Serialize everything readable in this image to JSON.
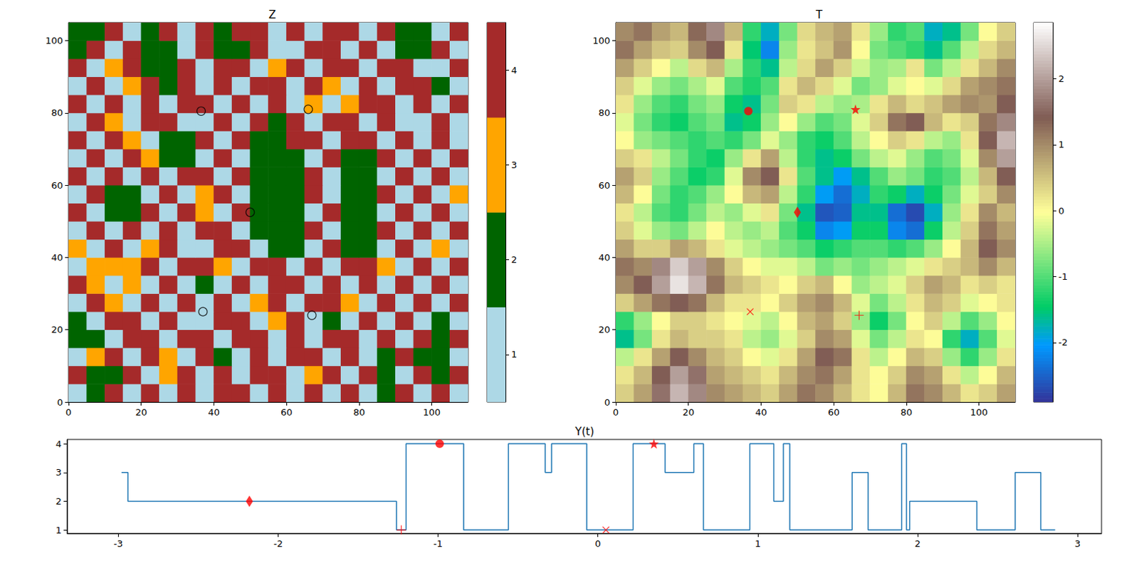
{
  "chart_data": [
    {
      "type": "heatmap",
      "title": "Z",
      "xlim": [
        0,
        110
      ],
      "ylim": [
        0,
        105
      ],
      "xticks": [
        0,
        20,
        40,
        60,
        80,
        100
      ],
      "yticks": [
        0,
        20,
        40,
        60,
        80,
        100
      ],
      "grid": false,
      "cells": [
        [
          1,
          2,
          4,
          1,
          4,
          1,
          4,
          1,
          4,
          4,
          1,
          4,
          1,
          4,
          1,
          4,
          1,
          2,
          4,
          1,
          4,
          1
        ],
        [
          4,
          2,
          2,
          4,
          1,
          3,
          4,
          1,
          4,
          1,
          4,
          4,
          1,
          3,
          4,
          1,
          4,
          2,
          1,
          4,
          2,
          4
        ],
        [
          1,
          3,
          4,
          1,
          4,
          3,
          1,
          4,
          2,
          1,
          4,
          1,
          4,
          4,
          1,
          4,
          1,
          2,
          4,
          2,
          2,
          1
        ],
        [
          2,
          2,
          1,
          4,
          4,
          1,
          4,
          4,
          1,
          4,
          4,
          1,
          4,
          1,
          4,
          4,
          1,
          4,
          1,
          4,
          2,
          4
        ],
        [
          2,
          1,
          4,
          4,
          1,
          4,
          1,
          1,
          4,
          4,
          1,
          3,
          4,
          1,
          2,
          1,
          4,
          1,
          4,
          1,
          2,
          1
        ],
        [
          1,
          4,
          3,
          1,
          4,
          1,
          4,
          1,
          4,
          1,
          3,
          4,
          1,
          4,
          4,
          3,
          1,
          4,
          1,
          4,
          1,
          4
        ],
        [
          4,
          3,
          1,
          3,
          1,
          4,
          1,
          2,
          1,
          4,
          1,
          4,
          4,
          1,
          4,
          1,
          4,
          1,
          4,
          1,
          4,
          1
        ],
        [
          1,
          3,
          3,
          3,
          4,
          1,
          4,
          4,
          3,
          1,
          4,
          4,
          1,
          4,
          1,
          4,
          4,
          3,
          1,
          4,
          1,
          4
        ],
        [
          3,
          1,
          4,
          1,
          3,
          4,
          1,
          1,
          4,
          4,
          1,
          2,
          2,
          1,
          4,
          2,
          2,
          1,
          4,
          1,
          3,
          1
        ],
        [
          1,
          4,
          1,
          4,
          1,
          4,
          1,
          4,
          4,
          1,
          2,
          2,
          2,
          4,
          1,
          2,
          2,
          4,
          1,
          4,
          1,
          4
        ],
        [
          4,
          1,
          2,
          2,
          4,
          1,
          4,
          3,
          1,
          4,
          2,
          2,
          2,
          1,
          4,
          2,
          2,
          1,
          4,
          1,
          4,
          1
        ],
        [
          1,
          4,
          2,
          2,
          1,
          4,
          1,
          3,
          4,
          1,
          2,
          2,
          2,
          4,
          1,
          2,
          2,
          4,
          1,
          4,
          1,
          3
        ],
        [
          4,
          1,
          4,
          1,
          4,
          1,
          4,
          4,
          1,
          4,
          2,
          2,
          2,
          4,
          1,
          2,
          2,
          1,
          4,
          1,
          4,
          1
        ],
        [
          1,
          4,
          1,
          4,
          3,
          2,
          2,
          1,
          4,
          1,
          2,
          2,
          2,
          1,
          4,
          2,
          2,
          4,
          1,
          4,
          1,
          4
        ],
        [
          4,
          1,
          4,
          3,
          1,
          2,
          2,
          4,
          1,
          4,
          2,
          2,
          4,
          4,
          1,
          4,
          4,
          1,
          4,
          1,
          4,
          1
        ],
        [
          1,
          4,
          3,
          1,
          4,
          4,
          1,
          1,
          4,
          1,
          4,
          2,
          4,
          1,
          4,
          4,
          1,
          4,
          1,
          1,
          4,
          1
        ],
        [
          4,
          1,
          4,
          1,
          4,
          1,
          4,
          4,
          1,
          4,
          1,
          4,
          1,
          3,
          1,
          3,
          4,
          4,
          1,
          4,
          1,
          4
        ],
        [
          1,
          4,
          1,
          3,
          4,
          2,
          4,
          1,
          4,
          1,
          4,
          4,
          1,
          4,
          3,
          1,
          4,
          1,
          4,
          4,
          2,
          1
        ],
        [
          4,
          1,
          3,
          4,
          2,
          2,
          4,
          1,
          4,
          4,
          1,
          3,
          4,
          1,
          4,
          4,
          1,
          4,
          4,
          1,
          1,
          4
        ],
        [
          2,
          4,
          1,
          4,
          2,
          2,
          1,
          4,
          2,
          2,
          4,
          1,
          1,
          4,
          4,
          1,
          4,
          1,
          2,
          2,
          4,
          1
        ],
        [
          2,
          2,
          4,
          1,
          2,
          4,
          1,
          4,
          2,
          4,
          4,
          1,
          4,
          1,
          4,
          4,
          1,
          4,
          2,
          2,
          1,
          4
        ]
      ],
      "color_range": [
        0.5,
        4.5
      ],
      "color_ticks": [
        1,
        2,
        3,
        4
      ],
      "colors": [
        "#add8e6",
        "#006400",
        "#ffa500",
        "#a52a2a"
      ],
      "points": {
        "x": [
          36.5,
          66,
          50,
          37,
          67
        ],
        "y": [
          80.5,
          81,
          52.5,
          25,
          24
        ],
        "marker": "circle",
        "color": "#000000"
      }
    },
    {
      "type": "heatmap",
      "title": "T",
      "xlim": [
        0,
        110
      ],
      "ylim": [
        0,
        105
      ],
      "xticks": [
        0,
        20,
        40,
        60,
        80,
        100
      ],
      "yticks": [
        0,
        20,
        40,
        60,
        80,
        100
      ],
      "grid": false,
      "cells": [
        [
          0.4,
          0.8,
          1.6,
          2.2,
          1.8,
          1.0,
          0.8,
          0.6,
          0.4,
          0.8,
          1.2,
          1.0,
          0.6,
          0.2,
          0.0,
          0.6,
          1.2,
          1.0,
          0.6,
          0.2,
          0.4,
          0.8
        ],
        [
          0.2,
          0.6,
          1.4,
          2.0,
          1.6,
          0.8,
          0.6,
          0.4,
          0.2,
          0.6,
          1.0,
          1.2,
          0.8,
          0.2,
          0.0,
          0.4,
          1.0,
          0.8,
          0.2,
          -0.4,
          0.0,
          0.6
        ],
        [
          -0.4,
          0.2,
          0.8,
          1.4,
          1.0,
          0.6,
          0.4,
          0.0,
          -0.2,
          0.2,
          0.8,
          1.4,
          1.2,
          0.2,
          -0.4,
          0.0,
          0.6,
          0.4,
          -0.6,
          -1.2,
          -0.6,
          0.2
        ],
        [
          -1.6,
          -0.8,
          0.2,
          0.6,
          0.4,
          0.4,
          0.2,
          -0.4,
          -0.6,
          -0.2,
          0.4,
          1.0,
          0.8,
          -0.2,
          -0.8,
          -0.4,
          0.2,
          0.0,
          -1.2,
          -1.8,
          -1.0,
          -0.2
        ],
        [
          -1.2,
          -0.6,
          0.0,
          0.4,
          0.4,
          0.2,
          0.0,
          -0.2,
          -0.4,
          0.0,
          0.6,
          0.8,
          0.4,
          -0.6,
          -1.4,
          -0.8,
          0.0,
          0.4,
          -0.4,
          -1.0,
          -0.6,
          0.0
        ],
        [
          0.4,
          0.8,
          1.2,
          1.4,
          1.2,
          0.6,
          0.2,
          0.2,
          0.0,
          0.4,
          0.8,
          1.0,
          0.6,
          -0.2,
          -0.8,
          -0.4,
          0.2,
          0.6,
          0.4,
          -0.2,
          0.0,
          0.2
        ],
        [
          1.0,
          1.4,
          2.0,
          2.6,
          2.2,
          1.2,
          0.6,
          0.4,
          0.2,
          0.0,
          0.4,
          0.6,
          0.0,
          -0.6,
          -0.4,
          -0.2,
          0.4,
          0.8,
          0.6,
          0.2,
          0.4,
          0.2
        ],
        [
          1.2,
          1.0,
          1.8,
          2.4,
          2.0,
          1.0,
          0.4,
          0.0,
          -0.2,
          -0.2,
          -0.4,
          -0.8,
          -0.6,
          -0.8,
          -0.6,
          -0.4,
          -0.2,
          0.2,
          0.4,
          0.6,
          1.0,
          0.6
        ],
        [
          0.8,
          0.4,
          0.4,
          0.8,
          0.6,
          0.2,
          -0.2,
          -0.4,
          -0.6,
          -0.8,
          -1.0,
          -1.4,
          -1.2,
          -1.0,
          -1.0,
          -1.2,
          -1.0,
          -0.6,
          0.0,
          0.6,
          1.4,
          1.0
        ],
        [
          0.4,
          -0.2,
          -0.6,
          -0.8,
          -0.4,
          0.0,
          -0.4,
          -0.6,
          -0.4,
          -1.0,
          -1.4,
          -2.2,
          -2.0,
          -1.4,
          -1.4,
          -2.2,
          -2.4,
          -1.4,
          -0.4,
          0.4,
          1.2,
          0.8
        ],
        [
          0.2,
          -0.4,
          -1.0,
          -1.2,
          -0.8,
          -0.4,
          -0.6,
          -0.2,
          0.2,
          -0.8,
          -1.6,
          -2.6,
          -2.5,
          -1.6,
          -1.6,
          -2.4,
          -2.7,
          -1.8,
          -0.6,
          0.2,
          1.0,
          0.6
        ],
        [
          0.6,
          0.0,
          -0.8,
          -1.2,
          -1.0,
          -0.6,
          0.0,
          0.6,
          0.8,
          -0.4,
          -1.2,
          -2.0,
          -2.4,
          -1.8,
          -1.2,
          -1.4,
          -1.8,
          -1.4,
          -0.8,
          -0.2,
          0.4,
          1.0
        ],
        [
          0.8,
          0.4,
          -0.6,
          -1.0,
          -1.4,
          -1.2,
          -0.2,
          1.0,
          1.4,
          0.2,
          -1.0,
          -1.6,
          -2.0,
          -1.6,
          -1.0,
          -0.6,
          -0.8,
          -1.2,
          -1.0,
          -0.4,
          0.6,
          1.4
        ],
        [
          0.4,
          0.2,
          -0.4,
          -0.8,
          -1.2,
          -1.4,
          -0.6,
          0.2,
          0.8,
          -0.4,
          -1.2,
          -1.6,
          -1.4,
          -0.8,
          -0.4,
          -0.2,
          -0.6,
          -1.0,
          -0.8,
          -0.2,
          1.0,
          2.0
        ],
        [
          0.0,
          -0.6,
          -0.8,
          -1.0,
          -1.2,
          -1.0,
          -1.2,
          -0.8,
          -0.2,
          -0.6,
          -1.2,
          -1.4,
          -1.0,
          -0.4,
          0.0,
          0.4,
          0.2,
          -0.4,
          -0.6,
          0.2,
          1.4,
          2.2
        ],
        [
          -0.2,
          -0.8,
          -1.2,
          -1.4,
          -1.0,
          -0.8,
          -1.6,
          -1.4,
          -0.6,
          0.0,
          -0.6,
          -1.0,
          -0.8,
          -0.2,
          0.4,
          1.2,
          1.4,
          0.6,
          0.2,
          0.4,
          1.2,
          1.8
        ],
        [
          0.2,
          -0.6,
          -1.0,
          -1.2,
          -0.8,
          -0.6,
          -1.4,
          -1.6,
          -0.8,
          0.4,
          0.2,
          -0.4,
          -0.6,
          -0.5,
          0.2,
          0.6,
          0.3,
          0.5,
          0.8,
          1.0,
          0.9,
          1.4
        ],
        [
          0.4,
          -0.2,
          -0.6,
          -0.8,
          -0.5,
          -0.2,
          -1.0,
          -1.3,
          -1.0,
          0.2,
          0.6,
          0.3,
          -0.2,
          -0.8,
          -0.6,
          -0.2,
          0.0,
          -0.2,
          0.3,
          0.8,
          1.0,
          1.2
        ],
        [
          0.8,
          0.4,
          0.0,
          -0.4,
          0.3,
          0.6,
          -0.5,
          -1.2,
          -1.6,
          -0.4,
          0.3,
          0.8,
          0.4,
          -0.3,
          -0.6,
          -0.5,
          0.2,
          -0.8,
          -0.4,
          0.2,
          0.6,
          1.0
        ],
        [
          1.2,
          0.8,
          0.5,
          0.4,
          1.0,
          1.4,
          0.2,
          -1.5,
          -2.2,
          -0.6,
          0.2,
          0.5,
          0.9,
          0.0,
          -0.8,
          -1.0,
          -1.2,
          -1.6,
          -1.0,
          -0.4,
          0.3,
          0.6
        ],
        [
          1.0,
          1.2,
          0.8,
          0.6,
          1.3,
          1.8,
          0.6,
          -1.2,
          -1.8,
          -0.8,
          0.3,
          0.6,
          0.8,
          0.2,
          -0.6,
          -1.2,
          -1.0,
          -1.8,
          -1.6,
          -0.8,
          0.0,
          0.4
        ]
      ],
      "color_range": [
        -2.9,
        2.85
      ],
      "color_ticks": [
        -2,
        -1,
        0,
        1,
        2
      ],
      "colorscale": [
        [
          0,
          "#333399"
        ],
        [
          0.15,
          "#0099ff"
        ],
        [
          0.25,
          "#00cc66"
        ],
        [
          0.5,
          "#ffff99"
        ],
        [
          0.75,
          "#805c54"
        ],
        [
          1,
          "#ffffff"
        ]
      ],
      "points": {
        "x": [
          36.5,
          66,
          50,
          37,
          67
        ],
        "y": [
          80.5,
          81,
          52.5,
          25,
          24
        ],
        "markers": [
          "circle",
          "star",
          "diamond",
          "x",
          "plus"
        ],
        "color": "#ff0000"
      }
    },
    {
      "type": "line",
      "title": "Y(t)",
      "line_style": "step",
      "color": "#1f77b4",
      "grid": false,
      "x": [
        -2.98,
        -2.94,
        -1.26,
        -1.2,
        -0.84,
        -0.56,
        -0.33,
        -0.29,
        -0.07,
        0.22,
        0.42,
        0.6,
        0.66,
        0.95,
        1.1,
        1.16,
        1.2,
        1.59,
        1.69,
        1.9,
        1.93,
        1.95,
        2.37,
        2.61,
        2.77,
        2.86
      ],
      "values": [
        3,
        2,
        1,
        4,
        1,
        4,
        3,
        4,
        1,
        4,
        3,
        4,
        1,
        4,
        2,
        4,
        1,
        3,
        1,
        4,
        1,
        2,
        1,
        3,
        1,
        1
      ],
      "xlim": [
        -3.32,
        3.15
      ],
      "ylim": [
        0.88,
        4.15
      ],
      "xticks": [
        -3,
        -2,
        -1,
        0,
        1,
        2,
        3
      ],
      "yticks": [
        1,
        2,
        3,
        4
      ],
      "points": {
        "x": [
          -2.18,
          -1.23,
          -0.99,
          0.05,
          0.35
        ],
        "y": [
          2,
          1,
          4,
          1,
          4
        ],
        "markers": [
          "diamond",
          "plus",
          "circle",
          "x",
          "star"
        ],
        "color": "#ff0000"
      }
    }
  ]
}
